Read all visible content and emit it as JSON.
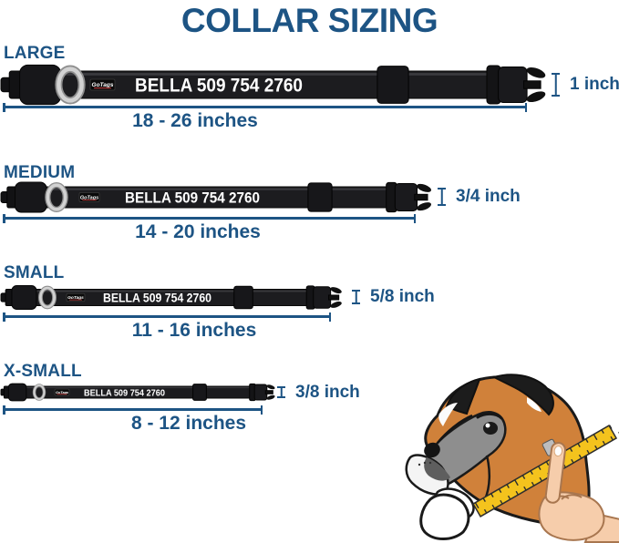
{
  "title": "COLLAR SIZING",
  "collar": {
    "print_text": "BELLA 509 754 2760",
    "brand": "GoTags"
  },
  "sizes": [
    {
      "label": "LARGE",
      "length_range": "18 - 26 inches",
      "width": "1 inch"
    },
    {
      "label": "MEDIUM",
      "length_range": "14 - 20 inches",
      "width": "3/4 inch"
    },
    {
      "label": "SMALL",
      "length_range": "11 - 16 inches",
      "width": "5/8 inch"
    },
    {
      "label": "X-SMALL",
      "length_range": "8 - 12 inches",
      "width": "3/8 inch"
    }
  ],
  "colors": {
    "accent_blue": "#1d5484",
    "collar_black": "#1c1c1f",
    "tape_yellow": "#f4c31d",
    "dog_orange": "#d0813a"
  }
}
